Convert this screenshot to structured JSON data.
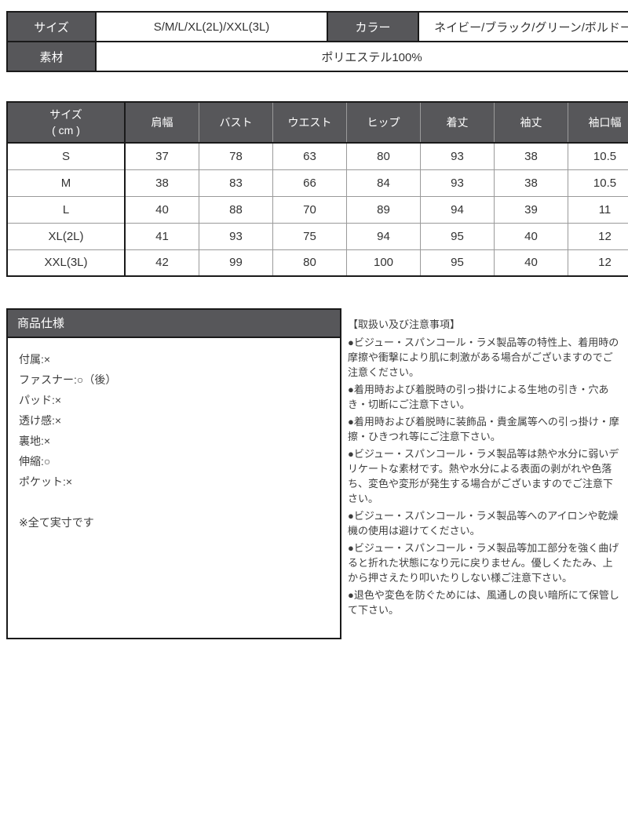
{
  "colors": {
    "header_bg": "#57575a",
    "border_dark": "#1a1a1a",
    "border_light": "#9a9a9a",
    "text": "#333333",
    "header_text": "#ffffff"
  },
  "top_table": {
    "size_label": "サイズ",
    "size_value": "S/M/L/XL(2L)/XXL(3L)",
    "color_label": "カラー",
    "color_value": "ネイビー/ブラック/グリーン/ボルドー",
    "material_label": "素材",
    "material_value": "ポリエステル100%"
  },
  "size_table": {
    "unit_header_line1": "サイズ",
    "unit_header_line2": "( cm )",
    "columns": [
      "肩幅",
      "バスト",
      "ウエスト",
      "ヒップ",
      "着丈",
      "袖丈",
      "袖口幅"
    ],
    "rows": [
      [
        "S",
        "37",
        "78",
        "63",
        "80",
        "93",
        "38",
        "10.5"
      ],
      [
        "M",
        "38",
        "83",
        "66",
        "84",
        "93",
        "38",
        "10.5"
      ],
      [
        "L",
        "40",
        "88",
        "70",
        "89",
        "94",
        "39",
        "11"
      ],
      [
        "XL(2L)",
        "41",
        "93",
        "75",
        "94",
        "95",
        "40",
        "12"
      ],
      [
        "XXL(3L)",
        "42",
        "99",
        "80",
        "100",
        "95",
        "40",
        "12"
      ]
    ]
  },
  "spec_box": {
    "title": "商品仕様",
    "lines": [
      "付属:×",
      "ファスナー:○（後）",
      "パッド:×",
      "透け感:×",
      "裏地:×",
      "伸縮:○",
      "ポケット:×"
    ],
    "note": "※全て実寸です"
  },
  "notes": {
    "title": "【取扱い及び注意事項】",
    "items": [
      "●ビジュー・スパンコール・ラメ製品等の特性上、着用時の摩擦や衝撃により肌に刺激がある場合がございますのでご注意ください。",
      "●着用時および着脱時の引っ掛けによる生地の引き・穴あき・切断にご注意下さい。",
      "●着用時および着脱時に装飾品・貴金属等への引っ掛け・摩擦・ひきつれ等にご注意下さい。",
      "●ビジュー・スパンコール・ラメ製品等は熱や水分に弱いデリケートな素材です。熱や水分による表面の剥がれや色落ち、変色や変形が発生する場合がございますのでご注意下さい。",
      "●ビジュー・スパンコール・ラメ製品等へのアイロンや乾燥機の使用は避けてください。",
      "●ビジュー・スパンコール・ラメ製品等加工部分を強く曲げると折れた状態になり元に戻りません。優しくたたみ、上から押さえたり叩いたりしない様ご注意下さい。",
      "●退色や変色を防ぐためには、風通しの良い暗所にて保管して下さい。"
    ]
  }
}
